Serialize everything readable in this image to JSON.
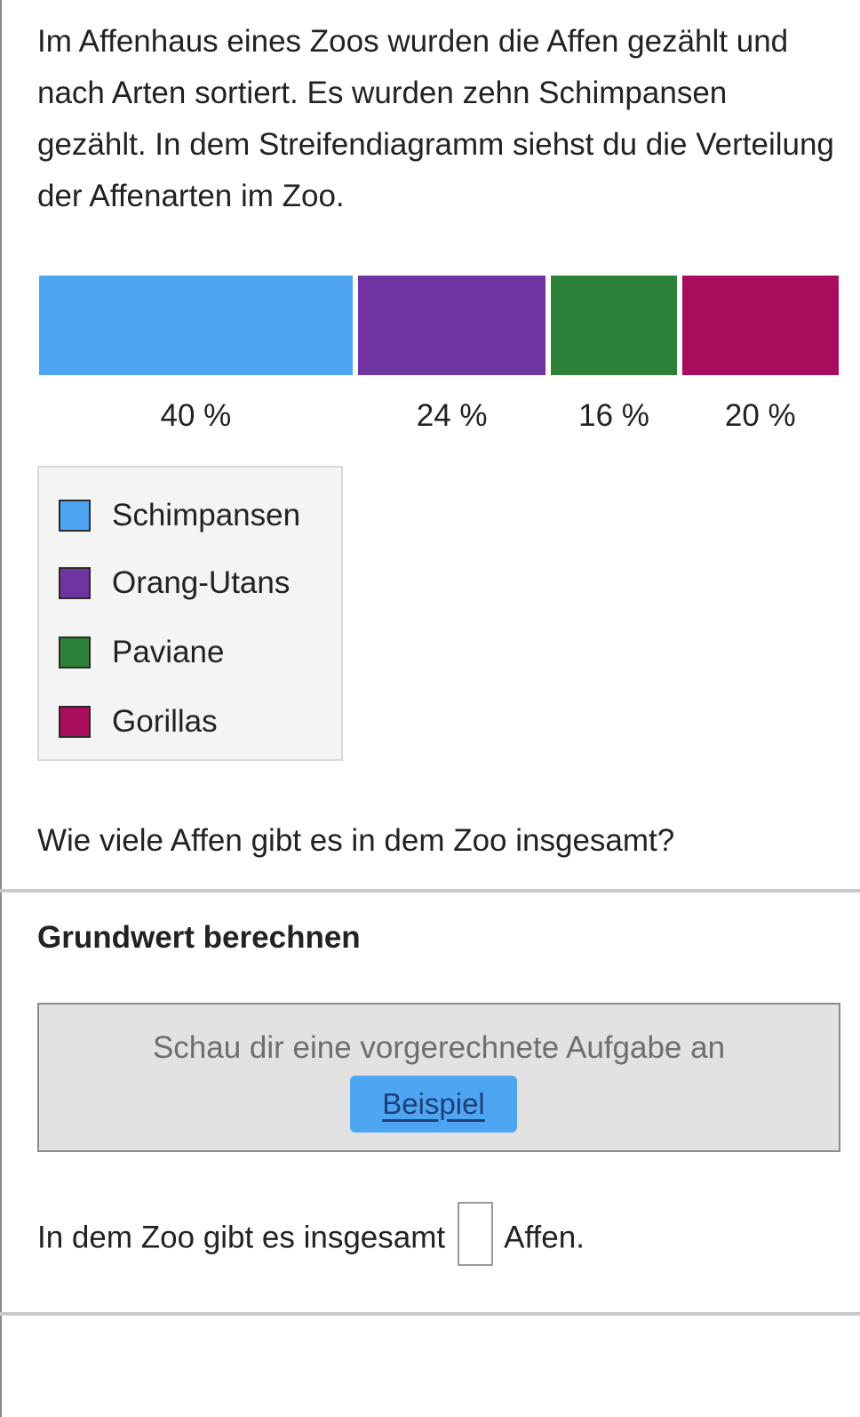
{
  "intro_text": "Im Affenhaus eines Zoos wurden die Affen gezählt und nach Arten sortiert. Es wurden zehn Schimpansen gezählt. In dem Streifendiagramm siehst du die Verteilung der Affenarten im Zoo.",
  "chart_data": {
    "type": "bar",
    "orientation": "stacked-horizontal-strip",
    "categories": [
      "Schimpansen",
      "Orang-Utans",
      "Paviane",
      "Gorillas"
    ],
    "values": [
      40,
      24,
      16,
      20
    ],
    "value_labels": [
      "40 %",
      "24 %",
      "16 %",
      "20 %"
    ],
    "colors": [
      "#4ea6f3",
      "#6f34a0",
      "#2e8139",
      "#a80c5c"
    ],
    "legend": "below-left",
    "grid": false
  },
  "question": "Wie viele Affen gibt es in dem Zoo insgesamt?",
  "section_title": "Grundwert berechnen",
  "example": {
    "text": "Schau dir eine vorgerechnete Aufgabe an",
    "button_label": "Beispiel"
  },
  "answer": {
    "prefix": "In dem Zoo gibt es insgesamt",
    "value": "",
    "suffix": "Affen."
  }
}
